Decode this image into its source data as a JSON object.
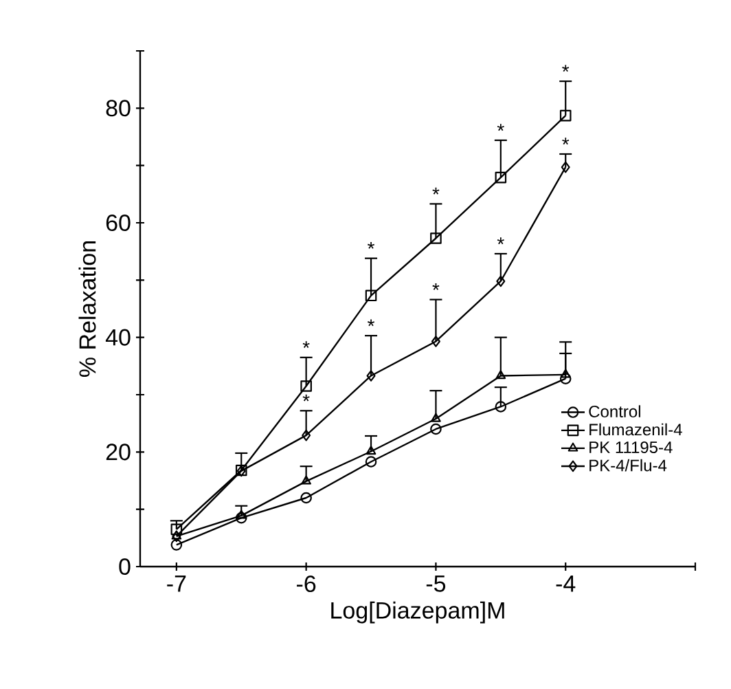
{
  "chart_data": {
    "type": "line",
    "xlabel": "Log[Diazepam]M",
    "ylabel": "% Relaxation",
    "x": [
      -7,
      -6.5,
      -6,
      -5.5,
      -5,
      -4.5,
      -4
    ],
    "xlim": [
      -7.28,
      -3
    ],
    "ylim": [
      0,
      90
    ],
    "xticks": [
      -7,
      -6,
      -5,
      -4,
      {
        "value": -3,
        "label": null
      }
    ],
    "yticks": [
      0,
      {
        "value": 10,
        "label": null
      },
      20,
      {
        "value": 30,
        "label": null
      },
      40,
      {
        "value": 50,
        "label": null
      },
      60,
      {
        "value": 70,
        "label": null
      },
      80,
      {
        "value": 90,
        "label": null
      }
    ],
    "legend": "bottom right",
    "grid": false,
    "line_style": "solid",
    "series": [
      {
        "name": "Control",
        "color": "#000000",
        "marker": "circle",
        "values": [
          3.8,
          8.5,
          12,
          18.3,
          24,
          27.9,
          32.8
        ],
        "errors": [
          null,
          null,
          null,
          null,
          null,
          [
            27.9,
            31.3
          ],
          [
            32.8,
            37.2
          ]
        ]
      },
      {
        "name": "Flumazenil-4",
        "color": "#000000",
        "marker": "square",
        "values": [
          6.5,
          16.8,
          31.5,
          47.3,
          57.3,
          67.9,
          78.7
        ],
        "errors": [
          [
            6.5,
            8
          ],
          [
            16.8,
            19.8
          ],
          [
            31.5,
            36.5
          ],
          [
            47.3,
            53.8
          ],
          [
            57.3,
            63.3
          ],
          [
            67.9,
            74.4
          ],
          [
            78.7,
            84.7
          ]
        ]
      },
      {
        "name": "PK 11195-4",
        "color": "#000000",
        "marker": "triangle",
        "values": [
          5.3,
          8.9,
          14.9,
          20.1,
          25.8,
          33.3,
          33.5
        ],
        "errors": [
          null,
          [
            8.9,
            10.6
          ],
          [
            14.9,
            17.5
          ],
          [
            20.1,
            22.8
          ],
          [
            25.8,
            30.7
          ],
          [
            33.3,
            40
          ],
          [
            33.5,
            39.2
          ]
        ]
      },
      {
        "name": "PK-4/Flu-4",
        "color": "#000000",
        "marker": "diamond",
        "values": [
          5.3,
          16.7,
          22.9,
          33.3,
          39.3,
          49.8,
          69.7
        ],
        "errors": [
          null,
          null,
          [
            22.9,
            27.2
          ],
          [
            33.3,
            40.3
          ],
          [
            39.3,
            46.6
          ],
          [
            49.8,
            54.6
          ],
          [
            69.7,
            72
          ]
        ]
      }
    ],
    "annotations": [
      {
        "text": "*",
        "x": -6,
        "y": 31.5
      },
      {
        "text": "*",
        "x": -5.5,
        "y": 47.3
      },
      {
        "text": "*",
        "x": -5,
        "y": 57.3
      },
      {
        "text": "*",
        "x": -4.5,
        "y": 67.9
      },
      {
        "text": "*",
        "x": -4,
        "y": 78.7
      },
      {
        "text": "*",
        "x": -6,
        "y": 22.9
      },
      {
        "text": "*",
        "x": -5.5,
        "y": 33.3
      },
      {
        "text": "*",
        "x": -5,
        "y": 39.3
      },
      {
        "text": "*",
        "x": -4.5,
        "y": 49.8
      },
      {
        "text": "*",
        "x": -4,
        "y": 69.7
      }
    ]
  }
}
